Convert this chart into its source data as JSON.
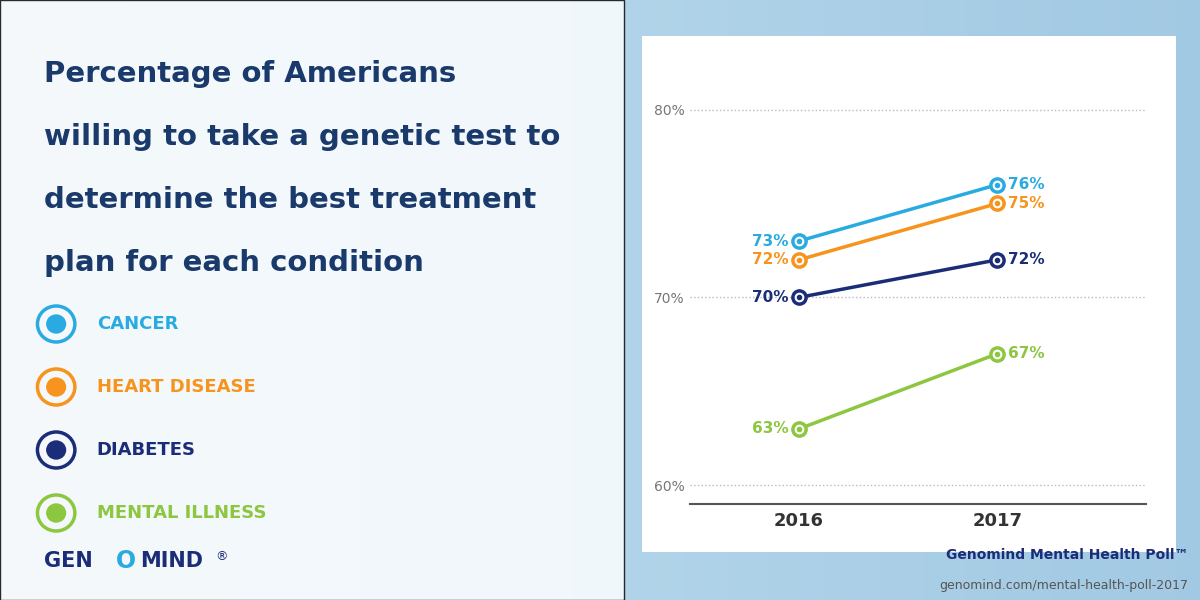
{
  "title_lines": [
    "Percentage of Americans",
    "willing to take a genetic test to",
    "determine the best treatment",
    "plan for each condition"
  ],
  "title_color": "#1a3a6b",
  "title_fontsize": 21,
  "series": [
    {
      "label": "CANCER",
      "color": "#29abe2",
      "values_2016": 73,
      "values_2017": 76
    },
    {
      "label": "HEART DISEASE",
      "color": "#f7941d",
      "values_2016": 72,
      "values_2017": 75
    },
    {
      "label": "DIABETES",
      "color": "#1b2d78",
      "values_2016": 70,
      "values_2017": 72
    },
    {
      "label": "MENTAL ILLNESS",
      "color": "#8dc63f",
      "values_2016": 63,
      "values_2017": 67
    }
  ],
  "years": [
    2016,
    2017
  ],
  "ylim": [
    59,
    82
  ],
  "yticks": [
    60,
    70,
    80
  ],
  "ytick_labels": [
    "60%",
    "70%",
    "80%"
  ],
  "background_color": "#d6e8f5",
  "chart_bg": "#ffffff",
  "footer_bold": "Genomind Mental Health Poll™",
  "footer_normal": "genomind.com/mental-health-poll-2017",
  "footer_color": "#1b2d78",
  "legend_label_colors": [
    "#29abe2",
    "#f7941d",
    "#1b2d78",
    "#8dc63f"
  ],
  "bg_gradient_top": "#cce0f0",
  "bg_gradient_bottom": "#e8f3fb"
}
